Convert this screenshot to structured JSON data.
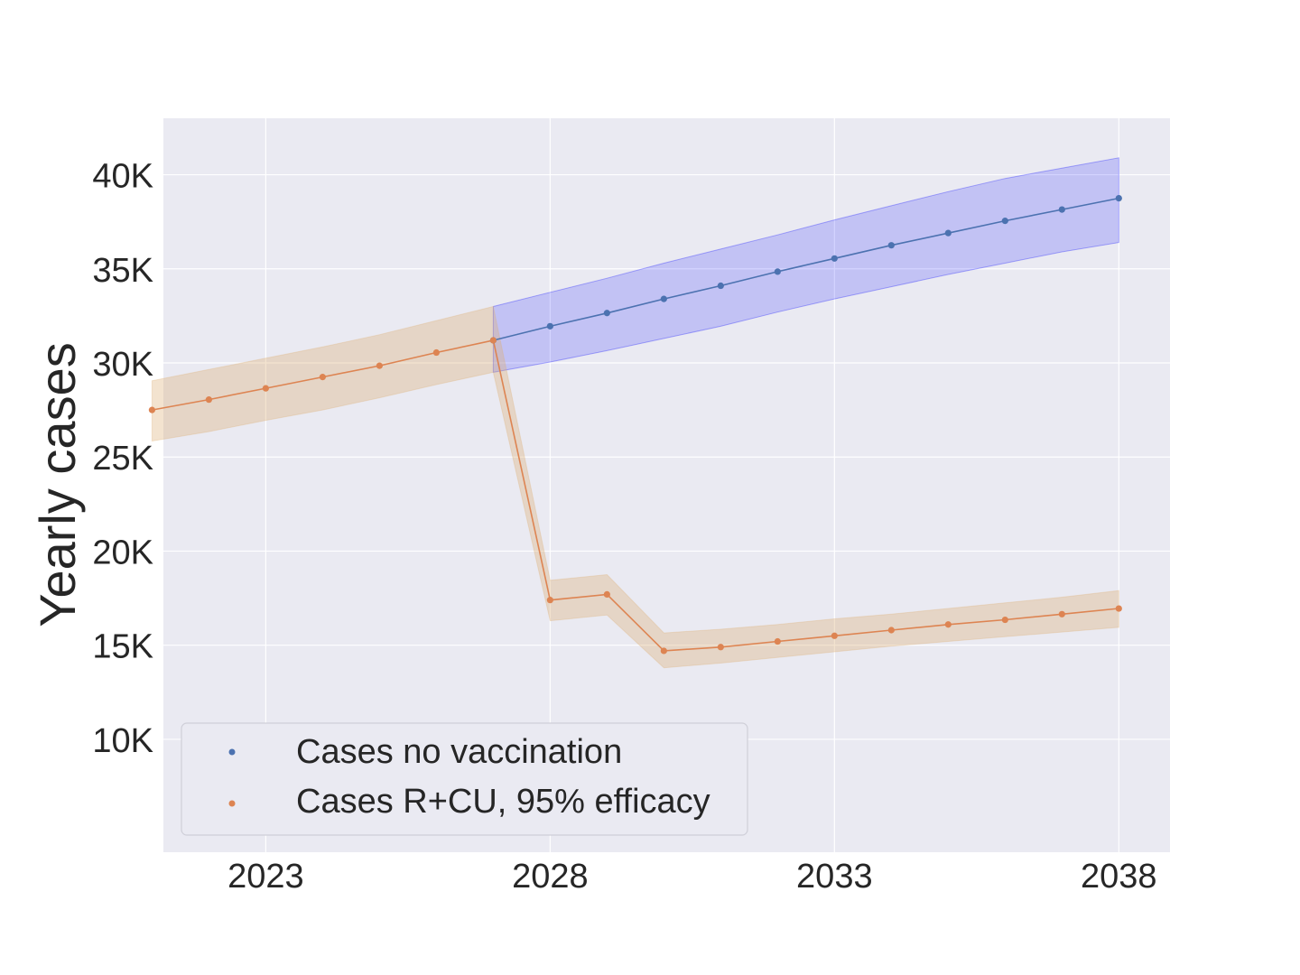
{
  "chart_data": {
    "type": "line",
    "title": "",
    "xlabel": "",
    "ylabel": "Yearly cases",
    "xlim": [
      2021.2,
      2038.9
    ],
    "ylim": [
      4000,
      43000
    ],
    "x_ticks": [
      2023,
      2028,
      2033,
      2038
    ],
    "x_tick_labels": [
      "2023",
      "2028",
      "2033",
      "2038"
    ],
    "y_ticks": [
      10000,
      15000,
      20000,
      25000,
      30000,
      35000,
      40000
    ],
    "y_tick_labels": [
      "10K",
      "15K",
      "20K",
      "25K",
      "30K",
      "35K",
      "40K"
    ],
    "grid": true,
    "legend_position": "lower-left",
    "series": [
      {
        "name": "Cases no vaccination",
        "color": "#4c72b0",
        "band_color": "#0000ff",
        "x": [
          2027,
          2028,
          2029,
          2030,
          2031,
          2032,
          2033,
          2034,
          2035,
          2036,
          2037,
          2038
        ],
        "values": [
          31200,
          31950,
          32650,
          33400,
          34100,
          34850,
          35550,
          36250,
          36900,
          37550,
          38150,
          38750
        ],
        "lower": [
          29500,
          30050,
          30650,
          31300,
          31950,
          32700,
          33400,
          34050,
          34700,
          35300,
          35900,
          36400
        ],
        "upper": [
          33000,
          33750,
          34500,
          35300,
          36050,
          36800,
          37600,
          38350,
          39100,
          39800,
          40350,
          40900
        ]
      },
      {
        "name": "Cases R+CU, 95% efficacy",
        "color": "#dd8452",
        "band_color": "#ddb075",
        "x": [
          2021,
          2022,
          2023,
          2024,
          2025,
          2026,
          2027,
          2028,
          2029,
          2030,
          2031,
          2032,
          2033,
          2034,
          2035,
          2036,
          2037,
          2038
        ],
        "values": [
          27500,
          28050,
          28650,
          29250,
          29850,
          30550,
          31200,
          17400,
          17700,
          14700,
          14900,
          15200,
          15500,
          15800,
          16100,
          16350,
          16650,
          16950
        ],
        "lower": [
          25850,
          26350,
          26950,
          27500,
          28150,
          28850,
          29500,
          16300,
          16600,
          13800,
          14050,
          14350,
          14650,
          14950,
          15200,
          15450,
          15700,
          15950
        ],
        "upper": [
          29050,
          29650,
          30250,
          30850,
          31500,
          32250,
          33000,
          18450,
          18750,
          15650,
          15850,
          16100,
          16400,
          16650,
          16950,
          17250,
          17550,
          17900
        ]
      }
    ]
  }
}
